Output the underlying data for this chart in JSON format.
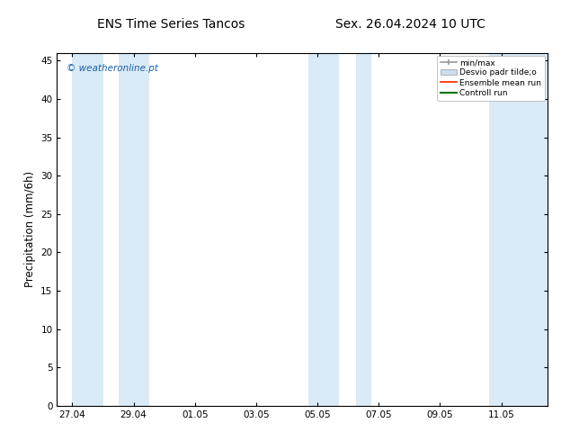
{
  "title_left": "ENS Time Series Tancos",
  "title_right": "Sex. 26.04.2024 10 UTC",
  "ylabel": "Precipitation (mm/6h)",
  "xlabel": "",
  "ylim": [
    0,
    46
  ],
  "yticks": [
    0,
    5,
    10,
    15,
    20,
    25,
    30,
    35,
    40,
    45
  ],
  "xtick_labels": [
    "27.04",
    "29.04",
    "01.05",
    "03.05",
    "05.05",
    "07.05",
    "09.05",
    "11.05"
  ],
  "xtick_positions": [
    0,
    2,
    4,
    6,
    8,
    10,
    12,
    14
  ],
  "shaded_color": "#daeaf7",
  "background_color": "#ffffff",
  "plot_bg_color": "#ffffff",
  "watermark": "© weatheronline.pt",
  "watermark_color": "#1a5fa8",
  "legend_labels": [
    "min/max",
    "Desvio padr tilde;o",
    "Ensemble mean run",
    "Controll run"
  ],
  "legend_line_color": "#999999",
  "legend_patch_color": "#ccddee",
  "legend_patch_edge": "#999999",
  "legend_red": "#ff2200",
  "legend_green": "#007700",
  "title_fontsize": 10,
  "tick_fontsize": 7.5,
  "ylabel_fontsize": 8.5,
  "xlim_min": -0.5,
  "xlim_max": 15.5,
  "band_positions": [
    [
      0.0,
      1.0
    ],
    [
      1.5,
      2.5
    ],
    [
      7.7,
      8.7
    ],
    [
      9.25,
      9.75
    ],
    [
      13.6,
      15.5
    ]
  ]
}
